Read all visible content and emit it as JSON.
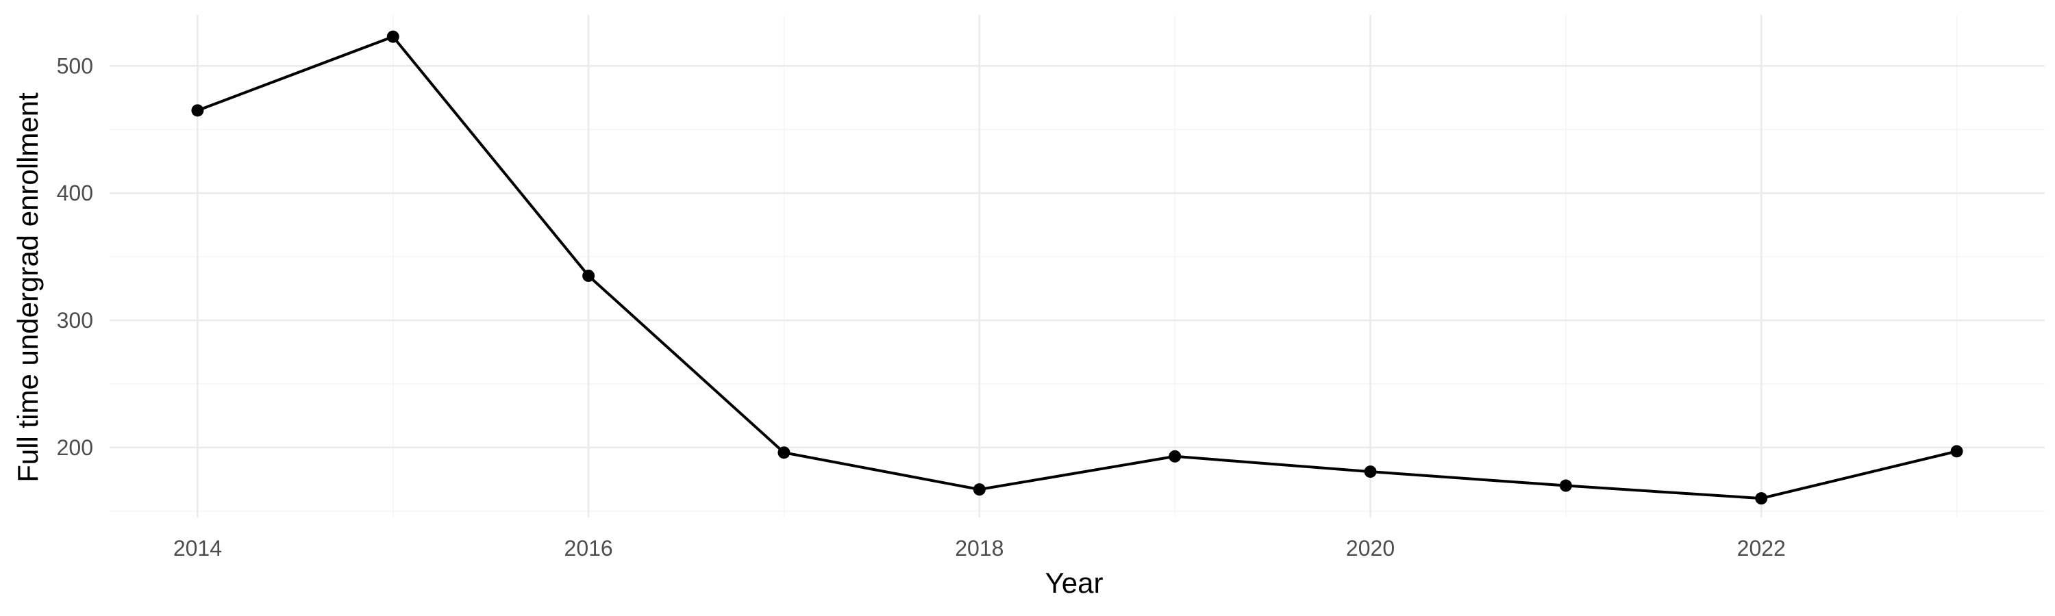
{
  "chart_data": {
    "type": "line",
    "title": "",
    "xlabel": "Year",
    "ylabel": "Full time undergrad enrollment",
    "x": [
      2014,
      2015,
      2016,
      2017,
      2018,
      2019,
      2020,
      2021,
      2022,
      2023
    ],
    "series": [
      {
        "values": [
          465,
          523,
          335,
          196,
          167,
          193,
          181,
          170,
          160,
          197
        ]
      }
    ],
    "xlim": [
      2013.55,
      2023.45
    ],
    "ylim": [
      145,
      540
    ],
    "x_ticks": [
      2014,
      2016,
      2018,
      2020,
      2022
    ],
    "x_tick_labels": [
      "2014",
      "2016",
      "2018",
      "2020",
      "2022"
    ],
    "y_ticks": [
      200,
      300,
      400,
      500
    ],
    "y_tick_labels": [
      "200",
      "300",
      "400",
      "500"
    ],
    "grid": true,
    "legend": "none",
    "colors": {
      "line": "#000000",
      "point": "#000000",
      "grid_major": "#ebebeb",
      "grid_minor": "#f4f4f4",
      "tick_text": "#4d4d4d"
    }
  }
}
